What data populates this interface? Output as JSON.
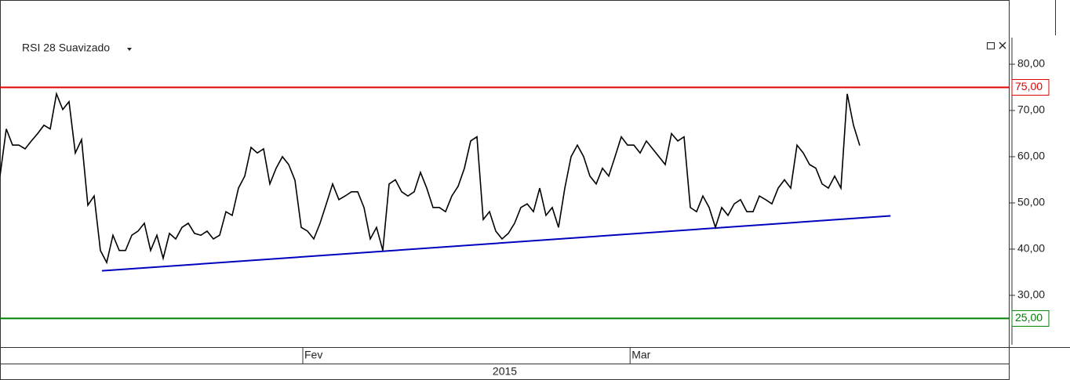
{
  "chart_data": {
    "type": "line",
    "title": "RSI 28 Suavizado",
    "series": [
      {
        "name": "RSI 28 Suavizado",
        "color": "#000000",
        "values": [
          55.8,
          66,
          62.5,
          62.5,
          61.7,
          63.4,
          65,
          66.8,
          66,
          73.6,
          70.2,
          71.9,
          60.8,
          63.7,
          49.5,
          51.5,
          39.7,
          37.1,
          43,
          39.7,
          39.7,
          43,
          43.9,
          45.6,
          39.7,
          43,
          38,
          43.4,
          42.2,
          44.7,
          45.6,
          43.4,
          43,
          43.9,
          42.2,
          43,
          48.1,
          47.3,
          53.2,
          55.8,
          62,
          60.8,
          61.7,
          54.1,
          57.5,
          60,
          58.3,
          54.9,
          44.7,
          43.9,
          42.2,
          45.6,
          49.8,
          54.1,
          50.7,
          51.5,
          52.4,
          52.4,
          49,
          42.2,
          44.7,
          39.7,
          54.1,
          55,
          52.4,
          51.5,
          52.4,
          56.6,
          53.2,
          49,
          49,
          48.1,
          51.5,
          53.6,
          57.5,
          63.4,
          64.3,
          46.4,
          48.1,
          43.9,
          42.2,
          43.4,
          45.6,
          49,
          49.8,
          48.1,
          53.2,
          47.3,
          49,
          44.7,
          53.2,
          60,
          62.5,
          60,
          55.8,
          54.1,
          57.5,
          55.8,
          60,
          64.3,
          62.5,
          62.5,
          60.8,
          63.4,
          61.7,
          60,
          58.3,
          65,
          63.4,
          64.3,
          49,
          48.1,
          51.5,
          49,
          44.7,
          49,
          47.3,
          49.8,
          50.7,
          48.1,
          48.1,
          51.5,
          50.7,
          49.8,
          53.2,
          55,
          53.2,
          62.5,
          60.8,
          58.3,
          57.5,
          54.1,
          53.2,
          55.8,
          53.2,
          73.6,
          66.8,
          62.4
        ]
      }
    ],
    "hlines": [
      {
        "value": 75,
        "label": "75,00",
        "color": "#e00000"
      },
      {
        "value": 25,
        "label": "25,00",
        "color": "#008000"
      }
    ],
    "trendline": {
      "x": [
        16.25,
        141.9
      ],
      "values": [
        35.3,
        47.2
      ],
      "color": "#0000c0"
    },
    "xlim": [
      0,
      160.875
    ],
    "xticks": [
      {
        "value": 48.25,
        "label": "Fev"
      },
      {
        "value": 100.4,
        "label": "Mar"
      }
    ],
    "period_label": "2015",
    "ylim": [
      18.8,
      93.9
    ],
    "yticks": [
      {
        "value": 30,
        "label": "30,00"
      },
      {
        "value": 40,
        "label": "40,00"
      },
      {
        "value": 50,
        "label": "50,00"
      },
      {
        "value": 60,
        "label": "60,00"
      },
      {
        "value": 70,
        "label": "70,00"
      },
      {
        "value": 80,
        "label": "80,00"
      }
    ]
  }
}
